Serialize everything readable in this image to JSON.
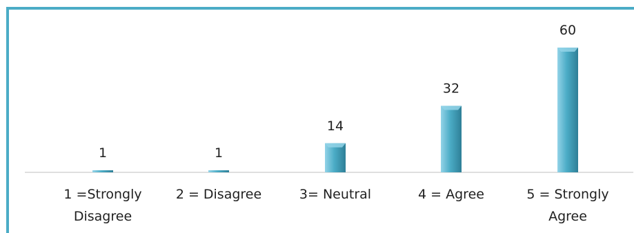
{
  "chart_data": {
    "type": "bar",
    "categories": [
      [
        "1  =Strongly",
        "Disagree"
      ],
      [
        "2 = Disagree"
      ],
      [
        "3= Neutral"
      ],
      [
        "4 = Agree"
      ],
      [
        "5 = Strongly",
        "Agree"
      ]
    ],
    "values": [
      1,
      1,
      14,
      32,
      60
    ],
    "data_labels": [
      "1",
      "1",
      "14",
      "32",
      "60"
    ],
    "ylim": [
      0,
      60
    ],
    "grid": false,
    "legend": "none",
    "colors": {
      "bar_light": "#93d3e8",
      "bar_mid": "#4bacc6",
      "bar_dark": "#2e7f97",
      "border": "#4bacc6",
      "axis": "#bfbfbf"
    }
  }
}
